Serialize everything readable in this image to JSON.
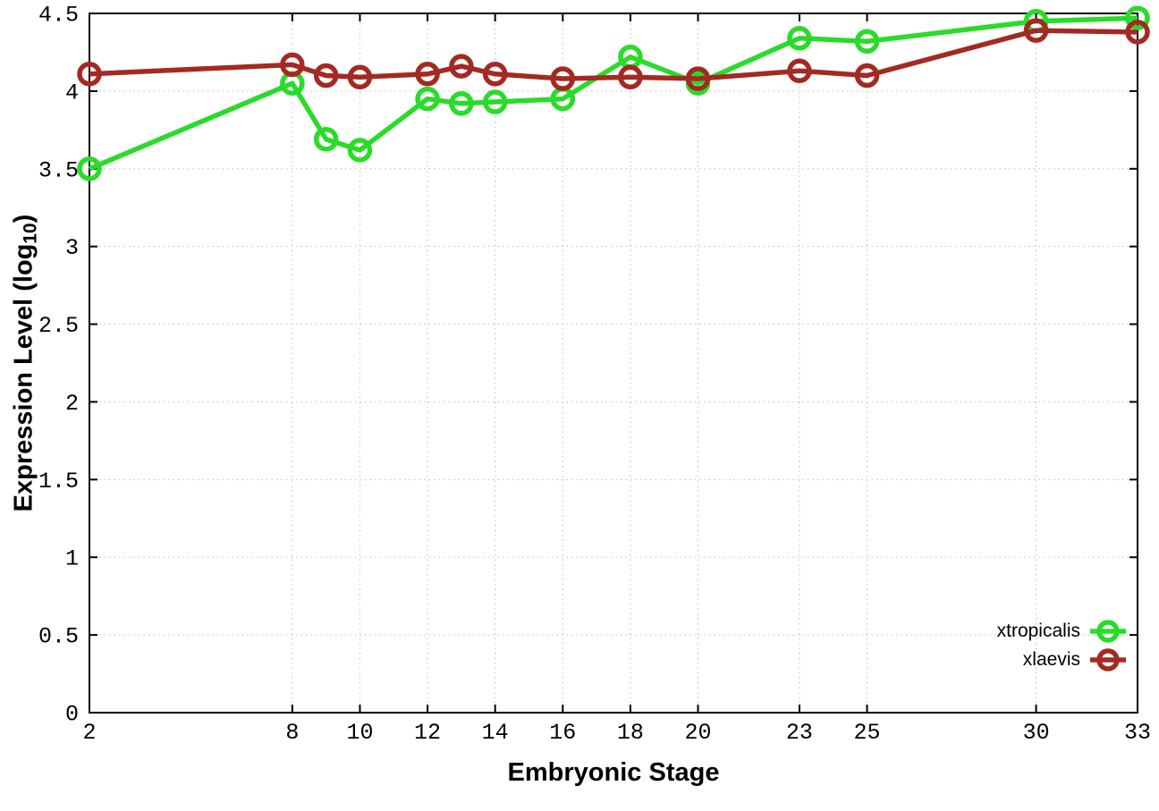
{
  "labels": {
    "ylabel_prefix": "Expression Level (log",
    "ylabel_sub": "10",
    "ylabel_suffix": ")"
  },
  "chart_data": {
    "type": "line",
    "title": "",
    "xlabel": "Embryonic Stage",
    "ylabel": "Expression Level (log10)",
    "x": [
      2,
      8,
      9,
      10,
      12,
      13,
      14,
      16,
      18,
      20,
      23,
      25,
      30,
      33
    ],
    "xlim": [
      2,
      33
    ],
    "ylim": [
      0,
      4.5
    ],
    "xticks": [
      2,
      8,
      10,
      12,
      14,
      16,
      18,
      20,
      23,
      25,
      30,
      33
    ],
    "xtick_labels": [
      "2",
      "8",
      "10",
      "12",
      "14",
      "16",
      "18",
      "20",
      "23",
      "25",
      "30",
      "33"
    ],
    "yticks": [
      0,
      0.5,
      1,
      1.5,
      2,
      2.5,
      3,
      3.5,
      4,
      4.5
    ],
    "ytick_labels": [
      "0",
      "0.5",
      "1",
      "1.5",
      "2",
      "2.5",
      "3",
      "3.5",
      "4",
      "4.5"
    ],
    "grid": true,
    "grid_color": "#bdbdbd",
    "axis_color": "#000000",
    "legend_position": "inside-bottom-right",
    "marker": "open-circle",
    "series": [
      {
        "name": "xtropicalis",
        "color": "#2adb2a",
        "values": [
          3.5,
          4.05,
          3.69,
          3.62,
          3.95,
          3.92,
          3.93,
          3.95,
          4.22,
          4.05,
          4.34,
          4.32,
          4.45,
          4.47
        ]
      },
      {
        "name": "xlaevis",
        "color": "#a32a22",
        "values": [
          4.11,
          4.17,
          4.1,
          4.09,
          4.11,
          4.16,
          4.11,
          4.08,
          4.09,
          4.08,
          4.13,
          4.1,
          4.39,
          4.38
        ]
      }
    ]
  }
}
